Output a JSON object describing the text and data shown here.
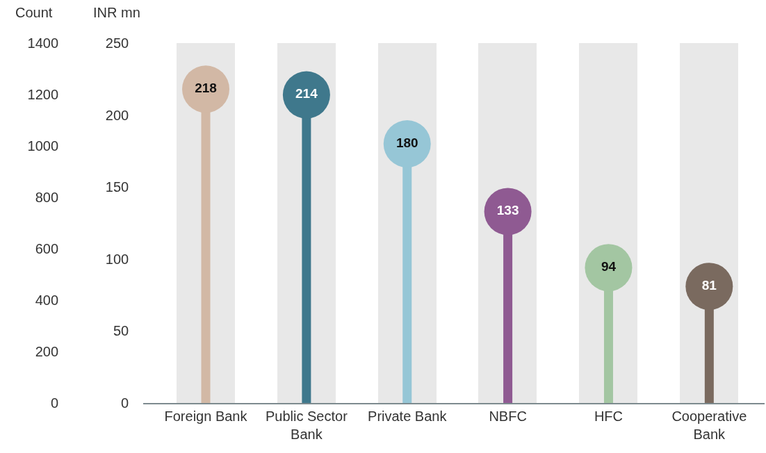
{
  "chart_data": {
    "type": "lollipop",
    "ylabel": "INR mn",
    "y2label": "Count",
    "categories": [
      "Foreign Bank",
      "Public Sector Bank",
      "Private Bank",
      "NBFC",
      "HFC",
      "Cooperative Bank"
    ],
    "series": [
      {
        "type": "bar",
        "color": "#e8e8e8",
        "values": [
          250,
          250,
          250,
          250,
          250,
          250
        ]
      },
      {
        "colors": [
          "#d2b8a5",
          "#3f788c",
          "#96c6d6",
          "#8f5a92",
          "#a3c6a2",
          "#7a6a5f"
        ],
        "values": [
          218,
          214,
          180,
          133,
          94,
          81
        ],
        "value_labels": [
          "218",
          "214",
          "180",
          "133",
          "94",
          "81"
        ]
      }
    ],
    "ylim": [
      0,
      250
    ],
    "yticks": [
      0,
      50,
      100,
      150,
      200,
      250
    ],
    "y2lim": [
      0,
      1400
    ],
    "y2ticks": [
      0,
      200,
      400,
      600,
      800,
      1000,
      1200,
      1400
    ],
    "marker": "circle"
  }
}
